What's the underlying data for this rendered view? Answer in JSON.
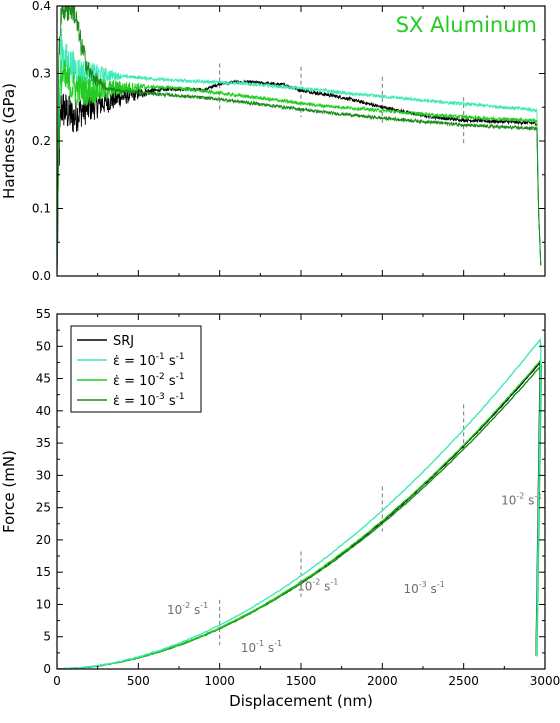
{
  "chart_data": [
    {
      "type": "line",
      "title": "SX Aluminum",
      "title_color": "#22cc22",
      "xlabel": "",
      "ylabel": "Hardness (GPa)",
      "xlim": [
        0,
        3000
      ],
      "ylim": [
        0,
        0.4
      ],
      "x_ticks": [
        0,
        500,
        1000,
        1500,
        2000,
        2500,
        3000
      ],
      "y_ticks": [
        {
          "value": 0.0,
          "label": "0.0"
        },
        {
          "value": 0.1,
          "label": "0.1"
        },
        {
          "value": 0.2,
          "label": "0.2"
        },
        {
          "value": 0.3,
          "label": "0.3"
        },
        {
          "value": 0.4,
          "label": "0.4"
        }
      ],
      "grid": false,
      "markers_x": [
        1000,
        1500,
        2000,
        2500
      ],
      "series": [
        {
          "key": "srj",
          "color": "#000000",
          "noise_end": 600,
          "x": [
            0,
            10,
            25,
            50,
            100,
            150,
            200,
            300,
            400,
            500,
            600,
            700,
            800,
            900,
            1000,
            1100,
            1200,
            1300,
            1400,
            1500,
            1600,
            1700,
            1800,
            1900,
            2000,
            2100,
            2200,
            2300,
            2400,
            2500,
            2600,
            2700,
            2800,
            2900,
            2950,
            2960,
            2975
          ],
          "y": [
            0,
            0.16,
            0.25,
            0.245,
            0.235,
            0.245,
            0.25,
            0.258,
            0.265,
            0.27,
            0.275,
            0.277,
            0.277,
            0.275,
            0.285,
            0.287,
            0.287,
            0.285,
            0.283,
            0.275,
            0.271,
            0.267,
            0.262,
            0.256,
            0.25,
            0.245,
            0.24,
            0.236,
            0.233,
            0.231,
            0.23,
            0.229,
            0.228,
            0.227,
            0.226,
            0.1,
            0.01
          ]
        },
        {
          "key": "r1",
          "color": "#40e8b8",
          "noise_end": 400,
          "x": [
            0,
            10,
            25,
            50,
            100,
            150,
            200,
            300,
            400,
            500,
            600,
            700,
            800,
            900,
            1000,
            1100,
            1200,
            1300,
            1400,
            1500,
            1600,
            1700,
            1800,
            1900,
            2000,
            2100,
            2200,
            2300,
            2400,
            2500,
            2600,
            2700,
            2800,
            2900,
            2950,
            2960,
            2975
          ],
          "y": [
            0,
            0.22,
            0.34,
            0.32,
            0.31,
            0.302,
            0.3,
            0.298,
            0.296,
            0.294,
            0.292,
            0.29,
            0.289,
            0.288,
            0.287,
            0.286,
            0.284,
            0.282,
            0.28,
            0.278,
            0.276,
            0.273,
            0.27,
            0.268,
            0.266,
            0.264,
            0.261,
            0.259,
            0.257,
            0.255,
            0.253,
            0.251,
            0.249,
            0.247,
            0.245,
            0.11,
            0.01
          ]
        },
        {
          "key": "r2",
          "color": "#22cc22",
          "noise_end": 550,
          "x": [
            0,
            10,
            25,
            50,
            100,
            150,
            200,
            300,
            400,
            500,
            600,
            700,
            800,
            900,
            1000,
            1100,
            1200,
            1300,
            1400,
            1500,
            1600,
            1700,
            1800,
            1900,
            2000,
            2100,
            2200,
            2300,
            2400,
            2500,
            2600,
            2700,
            2800,
            2900,
            2950,
            2960,
            2975
          ],
          "y": [
            0,
            0.2,
            0.3,
            0.29,
            0.28,
            0.275,
            0.274,
            0.276,
            0.278,
            0.28,
            0.28,
            0.279,
            0.277,
            0.274,
            0.271,
            0.268,
            0.265,
            0.262,
            0.259,
            0.256,
            0.253,
            0.251,
            0.249,
            0.247,
            0.245,
            0.243,
            0.241,
            0.239,
            0.237,
            0.236,
            0.234,
            0.233,
            0.232,
            0.231,
            0.23,
            0.1,
            0.01
          ]
        },
        {
          "key": "r3",
          "color": "#1a8a1a",
          "noise_end": 300,
          "x": [
            0,
            10,
            25,
            50,
            100,
            150,
            200,
            300,
            400,
            500,
            600,
            700,
            800,
            900,
            1000,
            1100,
            1200,
            1300,
            1400,
            1500,
            1600,
            1700,
            1800,
            1900,
            2000,
            2100,
            2200,
            2300,
            2400,
            2500,
            2600,
            2700,
            2800,
            2900,
            2950,
            2960,
            2975
          ],
          "y": [
            0,
            0.3,
            0.4,
            0.4,
            0.4,
            0.34,
            0.3,
            0.278,
            0.274,
            0.272,
            0.27,
            0.268,
            0.266,
            0.264,
            0.262,
            0.259,
            0.256,
            0.253,
            0.25,
            0.247,
            0.244,
            0.241,
            0.239,
            0.236,
            0.234,
            0.232,
            0.23,
            0.228,
            0.226,
            0.224,
            0.222,
            0.221,
            0.22,
            0.219,
            0.218,
            0.1,
            0.01
          ]
        }
      ]
    },
    {
      "type": "line",
      "xlabel": "Displacement (nm)",
      "ylabel": "Force (mN)",
      "xlim": [
        0,
        3000
      ],
      "ylim": [
        0,
        55
      ],
      "x_ticks": [
        0,
        500,
        1000,
        1500,
        2000,
        2500,
        3000
      ],
      "y_ticks": [
        {
          "value": 0,
          "label": "0"
        },
        {
          "value": 5,
          "label": "5"
        },
        {
          "value": 10,
          "label": "10"
        },
        {
          "value": 15,
          "label": "15"
        },
        {
          "value": 20,
          "label": "20"
        },
        {
          "value": 25,
          "label": "25"
        },
        {
          "value": 30,
          "label": "30"
        },
        {
          "value": 35,
          "label": "35"
        },
        {
          "value": 40,
          "label": "40"
        },
        {
          "value": 45,
          "label": "45"
        },
        {
          "value": 50,
          "label": "50"
        },
        {
          "value": 55,
          "label": "55"
        }
      ],
      "grid": false,
      "legend_position": "top-left",
      "markers_x": [
        1000,
        1500,
        2000,
        2500
      ],
      "legend": [
        {
          "key": "srj",
          "color": "#000000",
          "label": "SRJ"
        },
        {
          "key": "r1",
          "color": "#40e8b8",
          "label": "ε̇ = 10",
          "sup": "-1",
          "unit": " s",
          "unit_sup": "-1"
        },
        {
          "key": "r2",
          "color": "#22cc22",
          "label": "ε̇ = 10",
          "sup": "-2",
          "unit": " s",
          "unit_sup": "-1"
        },
        {
          "key": "r3",
          "color": "#1a8a1a",
          "label": "ε̇ = 10",
          "sup": "-3",
          "unit": " s",
          "unit_sup": "-1"
        }
      ],
      "annotations": [
        {
          "text": "10",
          "sup": "-2",
          "unit": " s",
          "unit_sup": "-1",
          "x": 930,
          "y": 8.5,
          "anchor": "end"
        },
        {
          "text": "10",
          "sup": "-1",
          "unit": " s",
          "unit_sup": "-1",
          "x": 1130,
          "y": 2.6,
          "anchor": "start"
        },
        {
          "text": "10",
          "sup": "-2",
          "unit": " s",
          "unit_sup": "-1",
          "x": 1730,
          "y": 12.2,
          "anchor": "end"
        },
        {
          "text": "10",
          "sup": "-3",
          "unit": " s",
          "unit_sup": "-1",
          "x": 2130,
          "y": 11.8,
          "anchor": "start"
        },
        {
          "text": "10",
          "sup": "-2",
          "unit": " s",
          "unit_sup": "-1",
          "x": 2730,
          "y": 25.5,
          "anchor": "start"
        }
      ],
      "series": [
        {
          "key": "srj",
          "color": "#000000",
          "unload": [
            2970,
            46.3,
            2945,
            2.0
          ],
          "x_max": 2970,
          "y_max": 47.5
        },
        {
          "key": "r3",
          "color": "#1a8a1a",
          "unload": [
            2975,
            46.0,
            2948,
            2.0
          ],
          "x_max": 2975,
          "y_max": 47.0
        },
        {
          "key": "r2",
          "color": "#22cc22",
          "unload": [
            2978,
            47.0,
            2950,
            2.0
          ],
          "x_max": 2978,
          "y_max": 48.0
        },
        {
          "key": "r1",
          "color": "#40e8b8",
          "unload": [
            2975,
            50.0,
            2947,
            2.0
          ],
          "x_max": 2975,
          "y_max": 51.2
        }
      ]
    }
  ]
}
